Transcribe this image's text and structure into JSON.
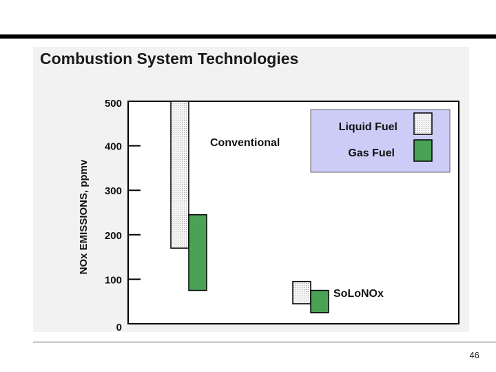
{
  "slide": {
    "title": "Combustion System Technologies",
    "page_number": "46"
  },
  "colors": {
    "liquid": "#f4f4f4",
    "liquid_dots": "#9a9a9a",
    "gas": "#4aa257",
    "legend_bg": "#ccccf6",
    "panel": "#f2f2f2"
  },
  "chart_data": {
    "type": "bar",
    "title": "",
    "ylabel": "NOx EMISSIONS, ppmv",
    "ylim": [
      0,
      500
    ],
    "yticks": [
      0,
      100,
      200,
      300,
      400,
      500
    ],
    "ytick_labels": [
      "0",
      "100",
      "200",
      "300",
      "400",
      "500"
    ],
    "categories": [
      "Conventional",
      "SoLoNOx"
    ],
    "series": [
      {
        "name": "Liquid Fuel",
        "ranges": [
          [
            170,
            500
          ],
          [
            45,
            95
          ]
        ]
      },
      {
        "name": "Gas Fuel",
        "ranges": [
          [
            75,
            245
          ],
          [
            25,
            75
          ]
        ]
      }
    ],
    "legend": {
      "placement": "top-right",
      "items": [
        "Liquid Fuel",
        "Gas Fuel"
      ]
    }
  }
}
